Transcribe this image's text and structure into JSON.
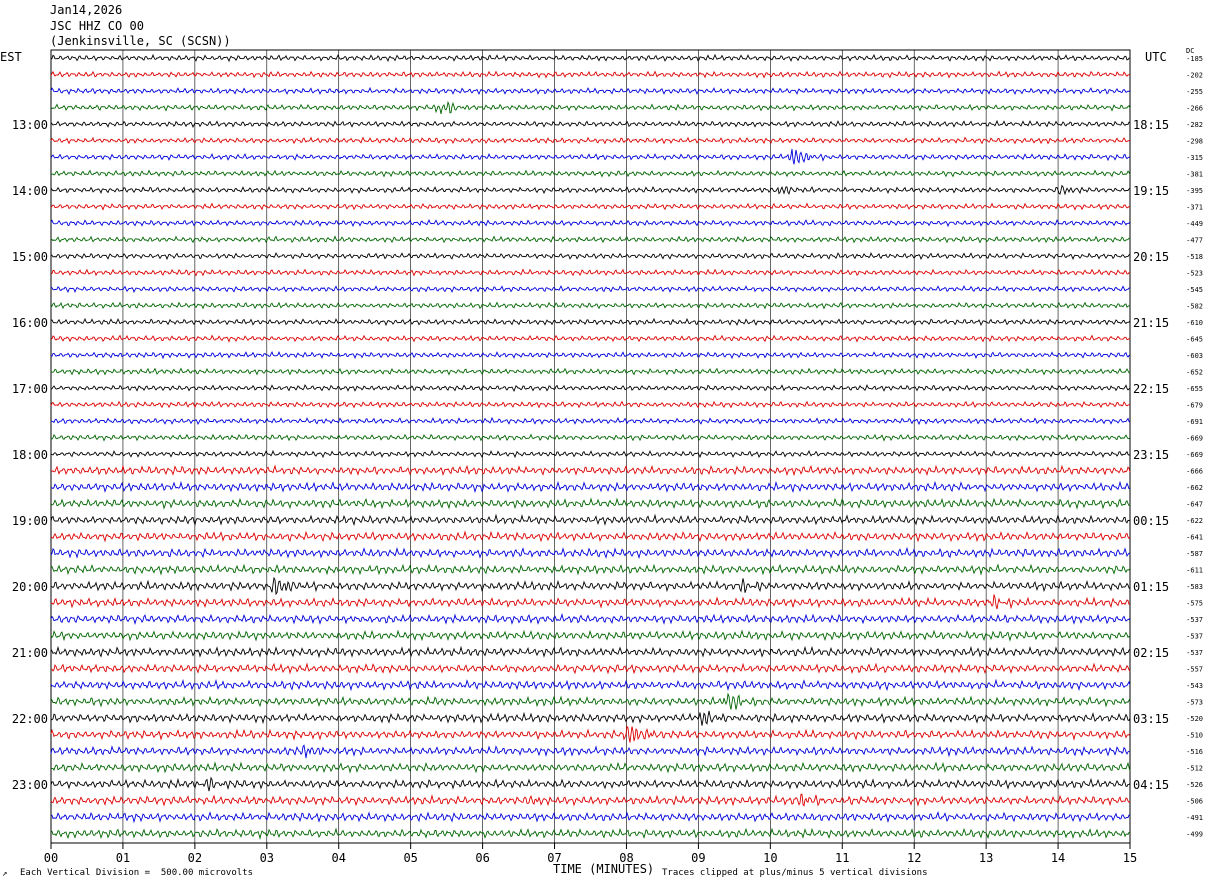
{
  "header": {
    "date": "Jan14,2026",
    "station": "JSC HHZ CO 00",
    "location": "(Jenkinsville, SC (SCSN))"
  },
  "left_tz": "EST",
  "right_tz": "UTC",
  "dc_label": "DC",
  "footer": {
    "vertical_division": "Each Vertical Division =  500.00 microvolts",
    "clipping": "Traces clipped at plus/minus 5 vertical divisions",
    "corner_mark": "↗"
  },
  "colors": {
    "trace_cycle": [
      "#000000",
      "#dd0000",
      "#0000dd",
      "#006600"
    ],
    "grid": "#000000"
  },
  "chart_data": {
    "type": "line",
    "title": "",
    "xlabel": "TIME (MINUTES)",
    "ylabel": "",
    "x_range": [
      0,
      15
    ],
    "x_ticks": [
      "00",
      "01",
      "02",
      "03",
      "04",
      "05",
      "06",
      "07",
      "08",
      "09",
      "10",
      "11",
      "12",
      "13",
      "14",
      "15"
    ],
    "left_hour_labels": [
      "13:00",
      "14:00",
      "15:00",
      "16:00",
      "17:00",
      "18:00",
      "19:00",
      "20:00",
      "21:00",
      "22:00",
      "23:00"
    ],
    "right_hour_labels": [
      "18:15",
      "19:15",
      "20:15",
      "21:15",
      "22:15",
      "23:15",
      "00:15",
      "01:15",
      "02:15",
      "03:15",
      "04:15"
    ],
    "trace_count": 48,
    "trace_dc_offsets": [
      -185,
      -202,
      -255,
      -266,
      -282,
      -298,
      -315,
      -381,
      -395,
      -371,
      -449,
      -477,
      -518,
      -523,
      -545,
      -582,
      -610,
      -645,
      -603,
      -652,
      -655,
      -679,
      -691,
      -669,
      -669,
      -666,
      -662,
      -647,
      -622,
      -641,
      -587,
      -611,
      -583,
      -575,
      -537,
      -537,
      -537,
      -557,
      -543,
      -573,
      -520,
      -510,
      -516,
      -512,
      -526,
      -506,
      -491,
      -499
    ],
    "events": [
      {
        "trace": 3,
        "minute": 5.4,
        "amp": 1.0
      },
      {
        "trace": 6,
        "minute": 10.3,
        "amp": 1.1
      },
      {
        "trace": 8,
        "minute": 10.1,
        "amp": 0.6
      },
      {
        "trace": 8,
        "minute": 14.0,
        "amp": 0.5
      },
      {
        "trace": 32,
        "minute": 3.1,
        "amp": 1.4
      },
      {
        "trace": 32,
        "minute": 9.6,
        "amp": 0.8
      },
      {
        "trace": 33,
        "minute": 13.1,
        "amp": 0.6
      },
      {
        "trace": 39,
        "minute": 9.4,
        "amp": 1.2
      },
      {
        "trace": 40,
        "minute": 9.0,
        "amp": 1.0
      },
      {
        "trace": 41,
        "minute": 8.0,
        "amp": 1.3
      },
      {
        "trace": 42,
        "minute": 3.5,
        "amp": 0.7
      },
      {
        "trace": 44,
        "minute": 2.1,
        "amp": 0.8
      },
      {
        "trace": 45,
        "minute": 10.4,
        "amp": 0.7
      },
      {
        "trace": 45,
        "minute": 6.6,
        "amp": 0.5
      }
    ]
  }
}
